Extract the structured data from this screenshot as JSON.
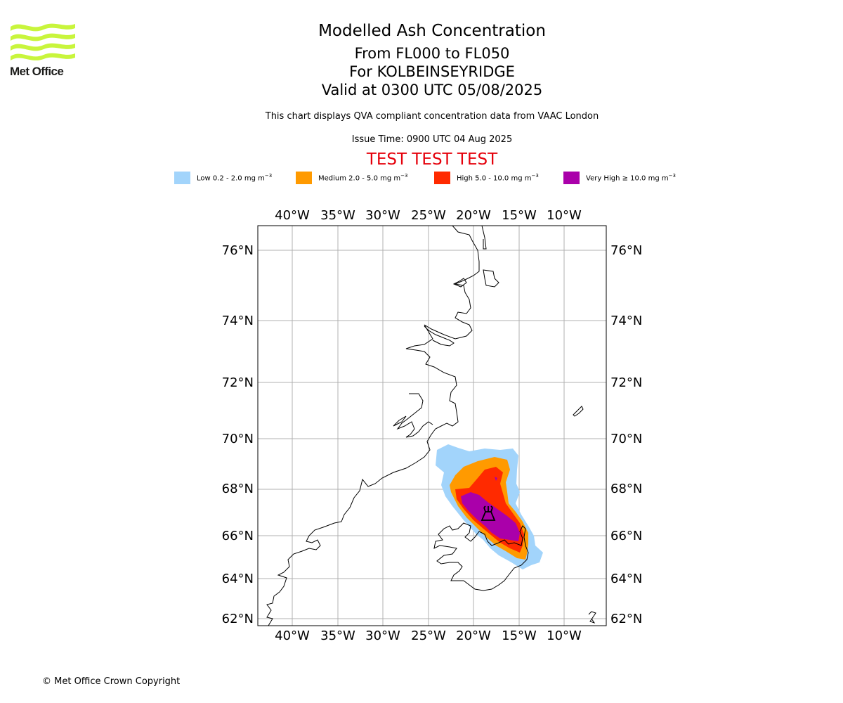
{
  "logo": {
    "text": "Met Office",
    "brand_color": "#c8f53c"
  },
  "title": {
    "line1": "Modelled Ash Concentration",
    "line2": "From FL000 to FL050",
    "line3": "For KOLBEINSEYRIDGE",
    "line4": "Valid at 0300 UTC 05/08/2025"
  },
  "subtitle": "This chart displays QVA compliant concentration data from VAAC London",
  "issue_time": "Issue Time: 0900 UTC 04 Aug 2025",
  "test_banner": "TEST TEST TEST",
  "legend": [
    {
      "label": "Low 0.2 - 2.0 mg m",
      "color": "#a2d4fb"
    },
    {
      "label": "Medium 2.0 - 5.0 mg m",
      "color": "#ff9a00"
    },
    {
      "label": "High 5.0 - 10.0 mg m",
      "color": "#ff2a00"
    },
    {
      "label": "Very High ≥ 10.0 mg m",
      "color": "#aa00aa"
    }
  ],
  "legend_unit_exponent": "−3",
  "map": {
    "lon_labels": [
      "40°W",
      "35°W",
      "30°W",
      "25°W",
      "20°W",
      "15°W",
      "10°W"
    ],
    "lat_labels": [
      "76°N",
      "74°N",
      "72°N",
      "70°N",
      "68°N",
      "66°N",
      "64°N",
      "62°N"
    ],
    "volcano": {
      "name": "KOLBEINSEYRIDGE",
      "icon": "volcano-icon"
    },
    "coastline_color": "#000000",
    "grid_color": "#b0b0b0"
  },
  "copyright": "© Met Office Crown Copyright"
}
